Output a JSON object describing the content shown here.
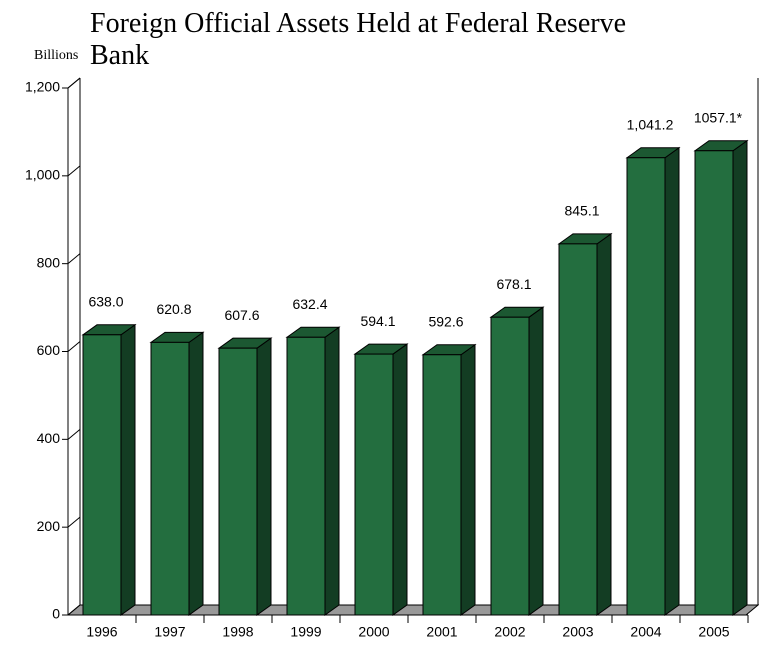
{
  "chart_data": {
    "type": "bar3d",
    "title": "Foreign Official Assets Held at Federal Reserve Bank",
    "y_axis_label": "Billions",
    "categories": [
      "1996",
      "1997",
      "1998",
      "1999",
      "2000",
      "2001",
      "2002",
      "2003",
      "2004",
      "2005"
    ],
    "values": [
      638.0,
      620.8,
      607.6,
      632.4,
      594.1,
      592.6,
      678.1,
      845.1,
      1041.2,
      1057.1
    ],
    "value_labels": [
      "638.0",
      "620.8",
      "607.6",
      "632.4",
      "594.1",
      "592.6",
      "678.1",
      "845.1",
      "1,041.2",
      "1057.1*"
    ],
    "color": "#236e3f",
    "ylim": [
      0,
      1200
    ],
    "yticks": [
      0,
      200,
      400,
      600,
      800,
      {
        "value": 1000,
        "label": "1,000"
      },
      {
        "value": 1200,
        "label": "1,200"
      }
    ],
    "grid": false
  }
}
